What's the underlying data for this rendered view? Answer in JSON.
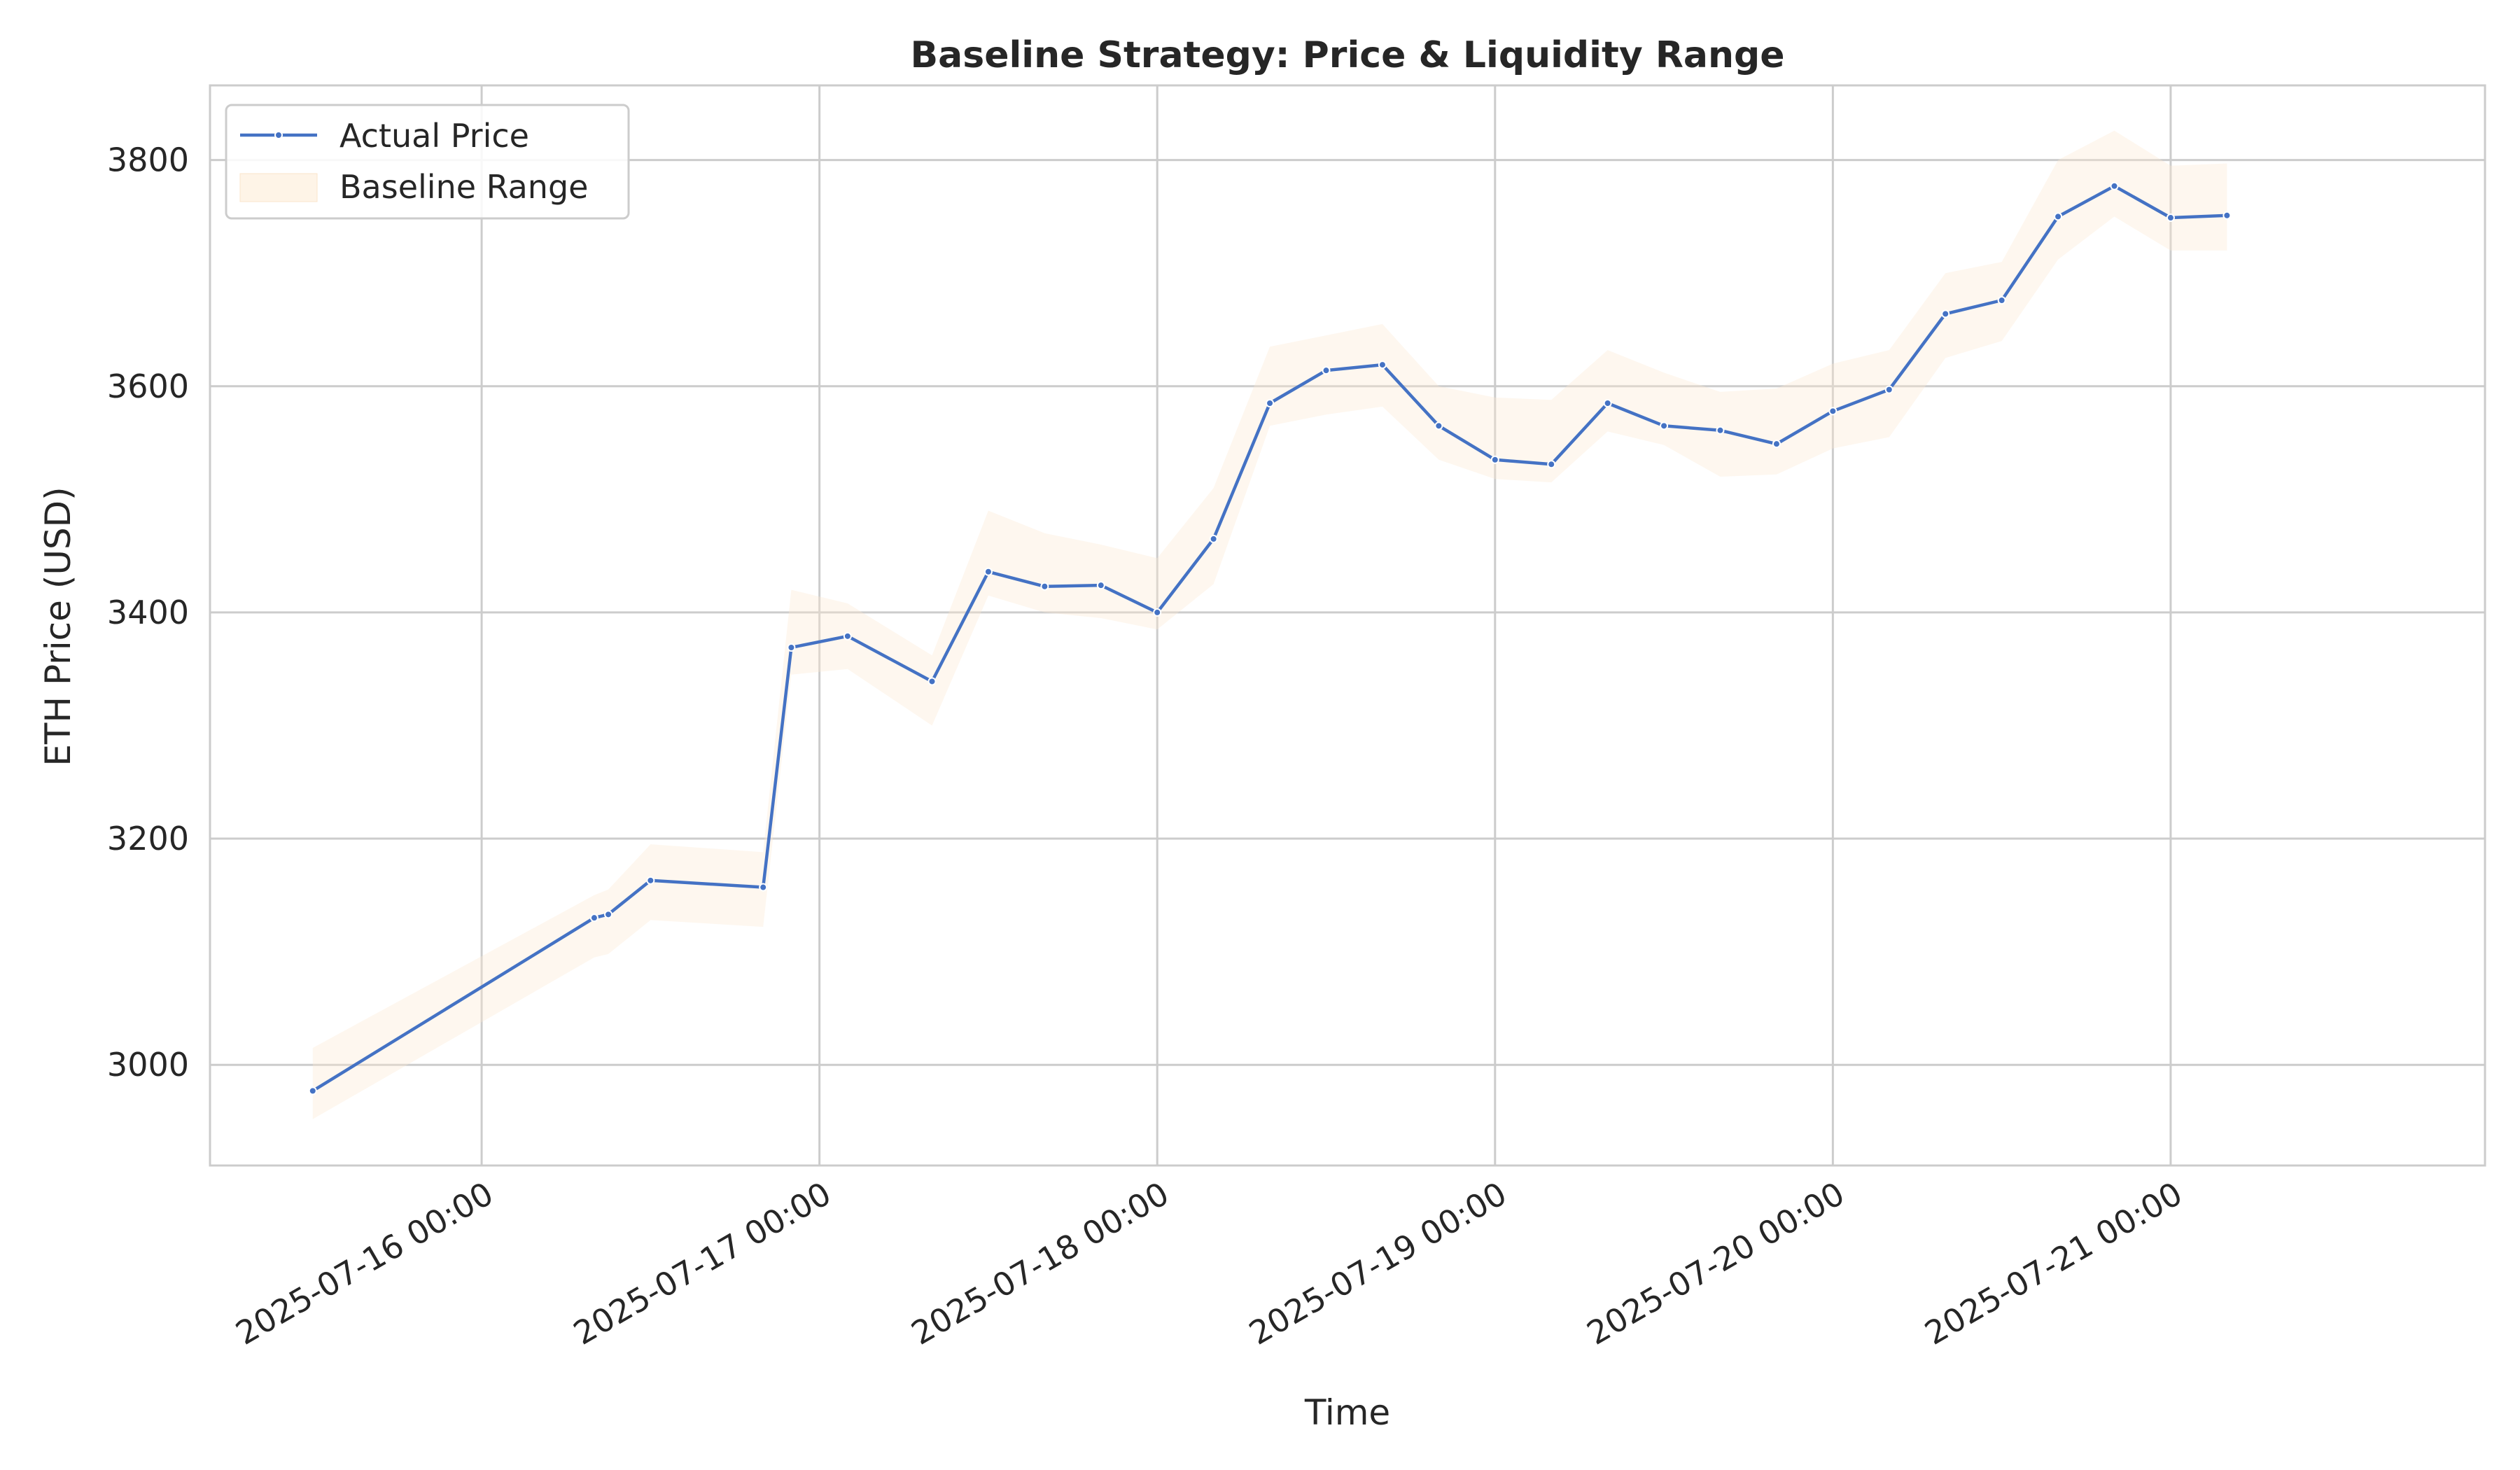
{
  "chart_data": {
    "type": "line",
    "title": "Baseline Strategy: Price & Liquidity Range",
    "xlabel": "Time",
    "ylabel": "ETH Price (USD)",
    "xlim": [
      "2025-07-15T04:42",
      "2025-07-21T22:20"
    ],
    "ylim": [
      2911,
      3866
    ],
    "grid": true,
    "legend_position": "top-left",
    "x_ticks": [
      {
        "t": "2025-07-16T00:00",
        "label": "2025-07-16 00:00"
      },
      {
        "t": "2025-07-17T00:00",
        "label": "2025-07-17 00:00"
      },
      {
        "t": "2025-07-18T00:00",
        "label": "2025-07-18 00:00"
      },
      {
        "t": "2025-07-19T00:00",
        "label": "2025-07-19 00:00"
      },
      {
        "t": "2025-07-20T00:00",
        "label": "2025-07-20 00:00"
      },
      {
        "t": "2025-07-21T00:00",
        "label": "2025-07-21 00:00"
      }
    ],
    "y_ticks": [
      3000,
      3200,
      3400,
      3600,
      3800
    ],
    "series": [
      {
        "name": "Actual Price",
        "color": "#4472c4",
        "x": [
          "2025-07-15T12:00",
          "2025-07-16T08:00",
          "2025-07-16T09:00",
          "2025-07-16T12:00",
          "2025-07-16T20:00",
          "2025-07-16T22:00",
          "2025-07-17T02:00",
          "2025-07-17T08:00",
          "2025-07-17T12:00",
          "2025-07-17T16:00",
          "2025-07-17T20:00",
          "2025-07-18T00:00",
          "2025-07-18T04:00",
          "2025-07-18T08:00",
          "2025-07-18T12:00",
          "2025-07-18T16:00",
          "2025-07-18T20:00",
          "2025-07-19T00:00",
          "2025-07-19T04:00",
          "2025-07-19T08:00",
          "2025-07-19T12:00",
          "2025-07-19T16:00",
          "2025-07-19T20:00",
          "2025-07-20T00:00",
          "2025-07-20T04:00",
          "2025-07-20T08:00",
          "2025-07-20T12:00",
          "2025-07-20T16:00",
          "2025-07-20T20:00",
          "2025-07-21T00:00",
          "2025-07-21T04:00"
        ],
        "values": [
          2977,
          3130,
          3133,
          3163,
          3157,
          3369,
          3379,
          3339,
          3436,
          3423,
          3424,
          3400,
          3465,
          3585,
          3614,
          3619,
          3565,
          3535,
          3531,
          3585,
          3565,
          3561,
          3549,
          3578,
          3597,
          3664,
          3676,
          3750,
          3777,
          3749,
          3751
        ]
      }
    ],
    "band": {
      "name": "Baseline Range",
      "color": "#fde9d0",
      "lower": [
        2952,
        3095,
        3098,
        3128,
        3122,
        3345,
        3350,
        3300,
        3415,
        3400,
        3395,
        3385,
        3425,
        3565,
        3575,
        3582,
        3535,
        3518,
        3515,
        3560,
        3548,
        3520,
        3522,
        3545,
        3555,
        3625,
        3640,
        3712,
        3750,
        3720,
        3720
      ],
      "upper": [
        3015,
        3150,
        3155,
        3195,
        3188,
        3420,
        3408,
        3362,
        3490,
        3470,
        3460,
        3448,
        3510,
        3635,
        3645,
        3655,
        3600,
        3590,
        3588,
        3632,
        3612,
        3595,
        3598,
        3620,
        3632,
        3700,
        3710,
        3800,
        3826,
        3795,
        3797
      ]
    }
  }
}
